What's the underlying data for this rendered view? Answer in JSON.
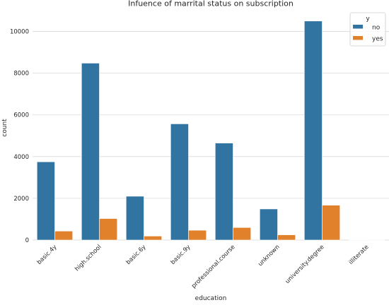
{
  "chart_data": {
    "type": "bar",
    "title": "Infuence of marrital status on subscription",
    "xlabel": "education",
    "ylabel": "count",
    "categories": [
      "basic.4y",
      "high.school",
      "basic.6y",
      "basic.9y",
      "professional.course",
      "unknown",
      "university.degree",
      "illiterate"
    ],
    "series": [
      {
        "name": "no",
        "values": [
          3750,
          8480,
          2100,
          5570,
          4650,
          1490,
          10500,
          14
        ],
        "color": "#3274a1"
      },
      {
        "name": "yes",
        "values": [
          430,
          1030,
          190,
          470,
          600,
          250,
          1670,
          4
        ],
        "color": "#e1812c"
      }
    ],
    "ylim": [
      0,
      11000
    ],
    "yticks": [
      0,
      2000,
      4000,
      6000,
      8000,
      10000
    ],
    "ytick_labels": [
      "0",
      "2000",
      "4000",
      "6000",
      "8000",
      "10000"
    ],
    "grid": "y",
    "legend": {
      "title": "y",
      "position": "top-right"
    },
    "style": {
      "grid_color": "#d9d9d9",
      "text_color": "#262626"
    }
  }
}
